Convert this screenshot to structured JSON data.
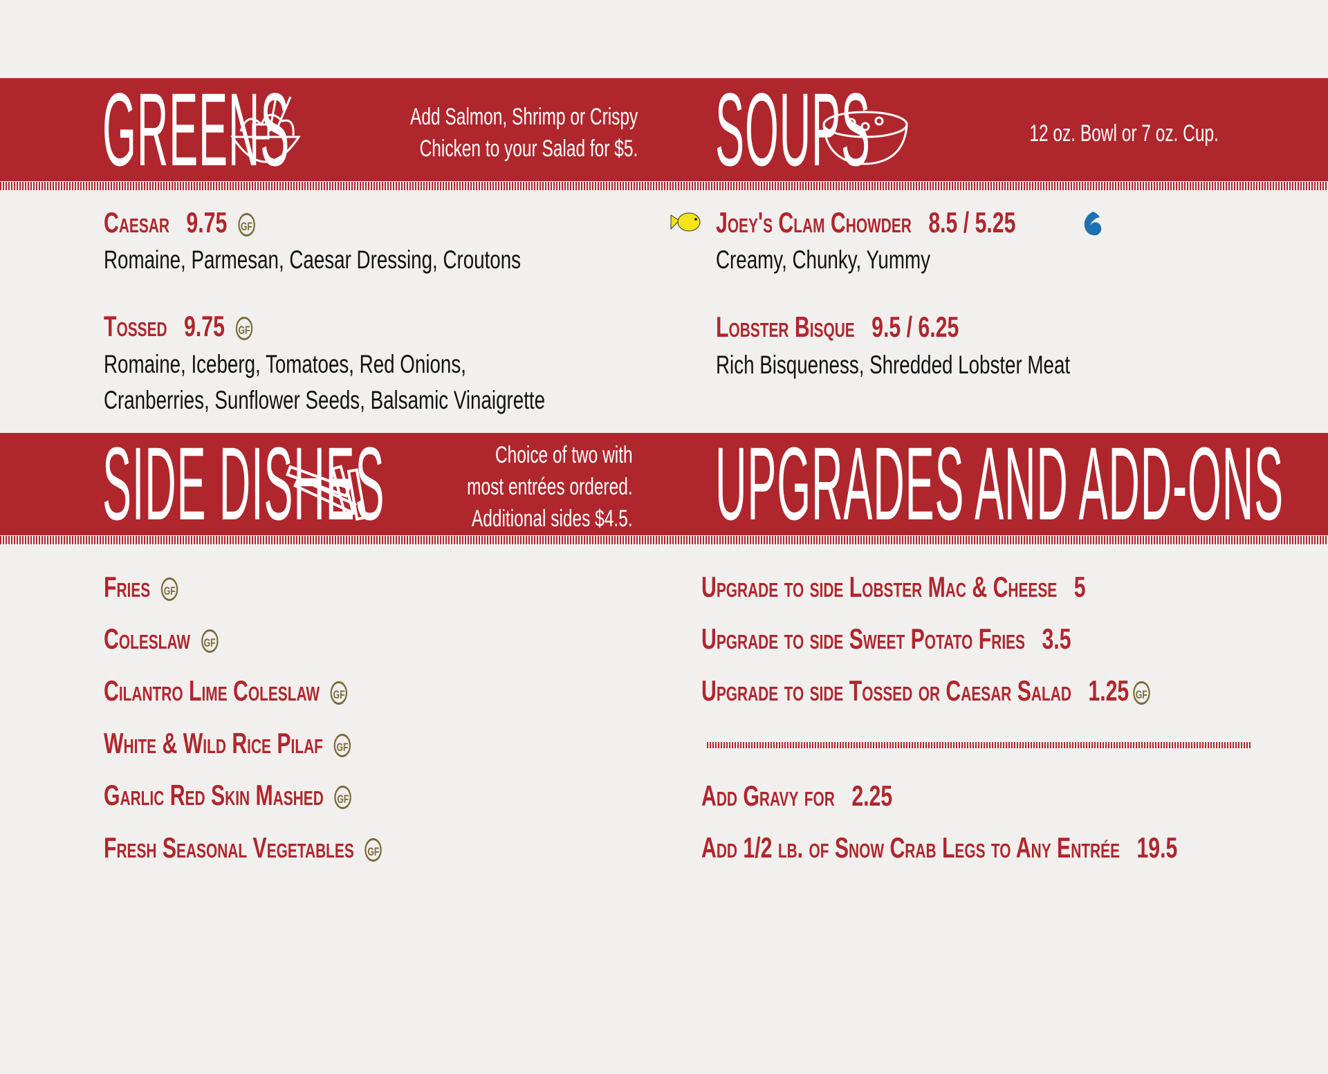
{
  "colors": {
    "band": "#b0262d",
    "text": "#111111",
    "gf_badge": "#7a6a3a",
    "fish": "#f5e31a",
    "wave": "#1f6fb3"
  },
  "greens": {
    "heading": "GREENS",
    "icon": "salad-bowl-icon",
    "note_lines": [
      "Add Salmon, Shrimp or Crispy",
      "Chicken to your Salad for $5."
    ],
    "items": [
      {
        "name": "Caesar",
        "price": "9.75",
        "gf": "GF",
        "desc": [
          "Romaine, Parmesan, Caesar Dressing, Croutons"
        ]
      },
      {
        "name": "Tossed",
        "price": "9.75",
        "gf": "GF",
        "desc": [
          "Romaine, Iceberg, Tomatoes, Red Onions,",
          "Cranberries, Sunflower Seeds, Balsamic Vinaigrette"
        ]
      }
    ]
  },
  "soups": {
    "heading": "SOUPS",
    "icon": "soup-bowl-icon",
    "note": "12 oz. Bowl or 7 oz. Cup.",
    "items": [
      {
        "name": "Joey's Clam Chowder",
        "price": "8.5 / 5.25",
        "desc": "Creamy, Chunky, Yummy"
      },
      {
        "name": "Lobster Bisque",
        "price": "9.5 / 6.25",
        "desc": "Rich Bisqueness, Shredded Lobster Meat"
      }
    ]
  },
  "sides": {
    "heading": "SIDE DISHES",
    "icon": "fries-icon",
    "note_lines": [
      "Choice of two with",
      "most entrées ordered.",
      "Additional sides $4.5."
    ],
    "items": [
      "Fries",
      "Coleslaw",
      "Cilantro Lime Coleslaw",
      "White & Wild Rice Pilaf",
      "Garlic Red Skin Mashed",
      "Fresh Seasonal Vegetables"
    ],
    "gf": "GF"
  },
  "upgrades": {
    "heading": "UPGRADES AND ADD-ONS",
    "items": [
      {
        "name": "Upgrade to side Lobster Mac & Cheese",
        "price": "5"
      },
      {
        "name": "Upgrade to side Sweet Potato Fries",
        "price": "3.5"
      },
      {
        "name": "Upgrade to side Tossed or Caesar Salad",
        "price": "1.25",
        "gf": "GF"
      }
    ],
    "addons": [
      {
        "name": "Add Gravy for",
        "price": "2.25"
      },
      {
        "name": "Add 1/2 lb. of Snow Crab Legs to Any Entrée",
        "price": "19.5"
      }
    ]
  }
}
